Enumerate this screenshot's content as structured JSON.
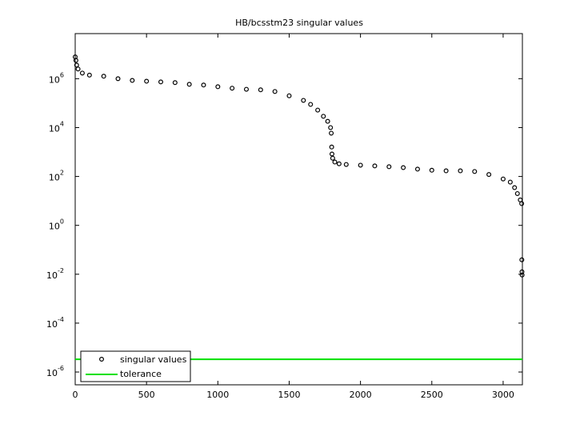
{
  "chart_data": {
    "type": "scatter",
    "title": "HB/bcsstm23 singular values",
    "series": [
      {
        "name": "singular values",
        "color": "#000000",
        "marker": "circle",
        "x": [
          0,
          5,
          10,
          20,
          50,
          100,
          200,
          300,
          400,
          500,
          600,
          700,
          800,
          900,
          1000,
          1100,
          1200,
          1300,
          1400,
          1500,
          1600,
          1650,
          1700,
          1740,
          1770,
          1790,
          1795,
          1798,
          1800,
          1805,
          1820,
          1850,
          1900,
          2000,
          2100,
          2200,
          2300,
          2400,
          2500,
          2600,
          2700,
          2800,
          2900,
          3000,
          3050,
          3080,
          3100,
          3120,
          3130,
          3131,
          3132,
          3133
        ],
        "values": [
          7800000,
          5600000,
          3600000,
          2500000,
          1700000,
          1400000,
          1260000,
          1000000,
          850000,
          790000,
          740000,
          690000,
          590000,
          550000,
          470000,
          410000,
          370000,
          350000,
          300000,
          200000,
          130000,
          89000,
          52000,
          29000,
          18000,
          10000,
          5900,
          1600,
          830,
          560,
          390,
          330,
          310,
          290,
          270,
          250,
          230,
          200,
          180,
          170,
          170,
          160,
          120,
          79,
          59,
          35,
          20,
          11,
          7.8,
          0.039,
          0.0126,
          0.0093
        ]
      },
      {
        "name": "tolerance",
        "color": "#00e000",
        "marker": "line",
        "x": [
          0,
          3135
        ],
        "values": [
          3.3e-06,
          3.3e-06
        ]
      }
    ],
    "xlim": [
      0,
      3135
    ],
    "xticks": [
      0,
      500,
      1000,
      1500,
      2000,
      2500,
      3000
    ],
    "ylim": [
      3e-07,
      70000000
    ],
    "yscale": "log",
    "yticks": [
      {
        "value": 1e-06,
        "label": "10^-6"
      },
      {
        "value": 0.0001,
        "label": "10^-4"
      },
      {
        "value": 0.01,
        "label": "10^-2"
      },
      {
        "value": 1,
        "label": "10^0"
      },
      {
        "value": 100,
        "label": "10^2"
      },
      {
        "value": 10000,
        "label": "10^4"
      },
      {
        "value": 1000000,
        "label": "10^6"
      }
    ],
    "grid": false,
    "legend": "lower left"
  }
}
